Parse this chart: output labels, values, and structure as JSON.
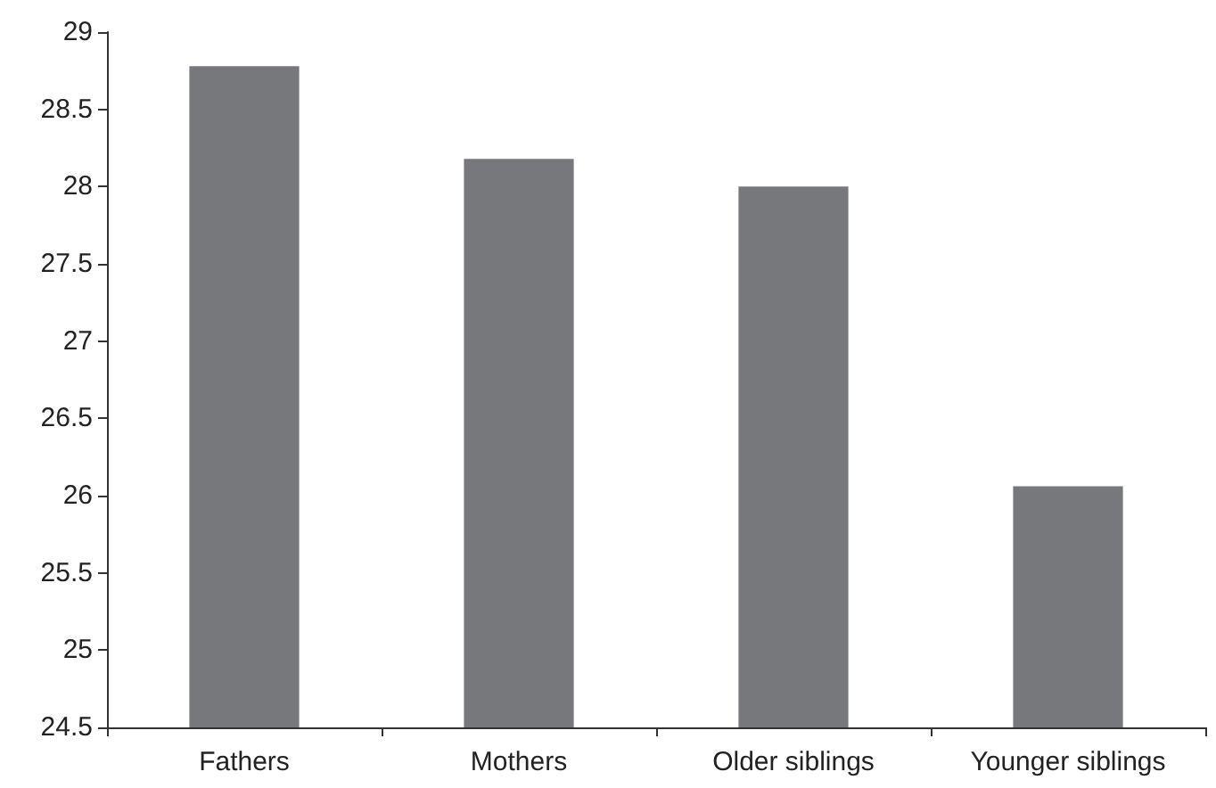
{
  "chart_data": {
    "type": "bar",
    "categories": [
      "Fathers",
      "Mothers",
      "Older siblings",
      "Younger siblings"
    ],
    "values": [
      28.78,
      28.18,
      28.0,
      26.06
    ],
    "color": "#77787b",
    "ylim": [
      24.5,
      29
    ],
    "yticks": [
      24.5,
      25,
      25.5,
      26,
      26.5,
      27,
      27.5,
      28,
      28.5,
      29
    ]
  }
}
